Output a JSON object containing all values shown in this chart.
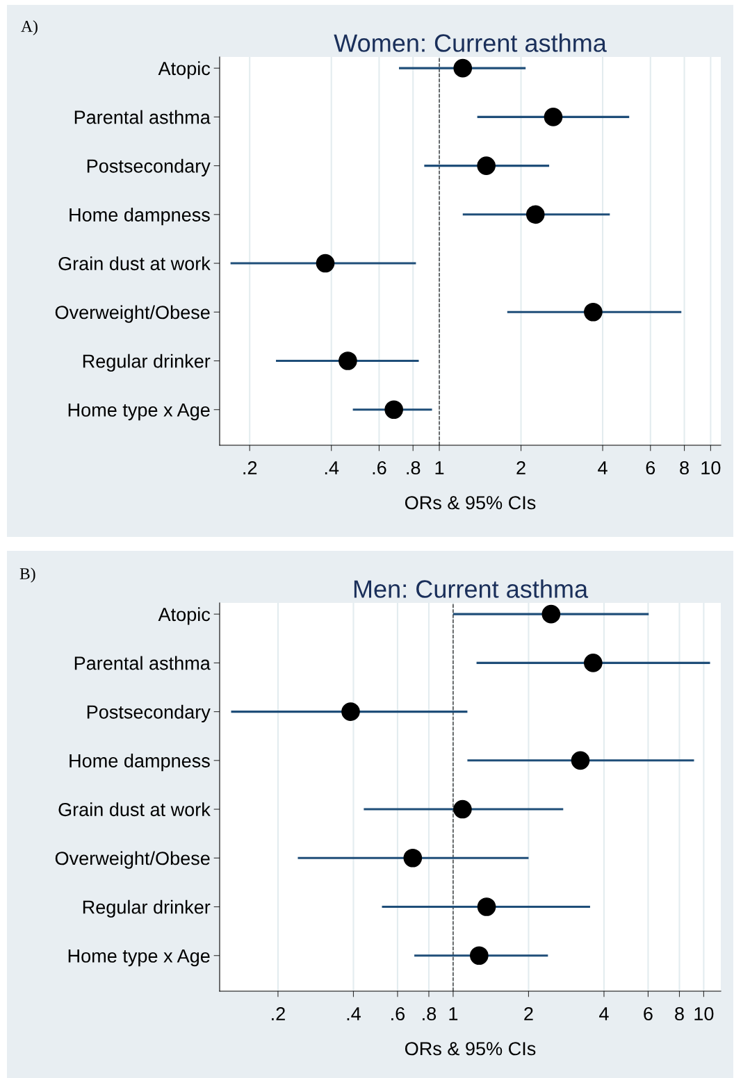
{
  "chart_data": [
    {
      "type": "scatter",
      "orientation": "horizontal",
      "title": "Women: Current asthma",
      "xlabel": "ORs & 95% CIs",
      "annotations": [
        "A)"
      ],
      "categories": [
        "Atopic",
        "Parental asthma",
        "Postsecondary",
        "Home dampness",
        "Grain dust at work",
        "Overweight/Obese",
        "Regular drinker",
        "Home type x Age"
      ],
      "values": [
        1.22,
        2.63,
        1.49,
        2.26,
        0.38,
        3.69,
        0.46,
        0.68
      ],
      "errors": [
        [
          0.71,
          2.08
        ],
        [
          1.38,
          5.01
        ],
        [
          0.88,
          2.54
        ],
        [
          1.22,
          4.25
        ],
        [
          0.17,
          0.82
        ],
        [
          1.78,
          7.8
        ],
        [
          0.25,
          0.84
        ],
        [
          0.48,
          0.94
        ]
      ],
      "color": "#000000",
      "marker": "circle",
      "log": "x",
      "grid": "x",
      "xlim": [
        0.155,
        10.9
      ],
      "xticks": [
        {
          "value": 0.2,
          "label": ".2"
        },
        {
          "value": 0.4,
          "label": ".4"
        },
        {
          "value": 0.6,
          "label": ".6"
        },
        {
          "value": 0.8,
          "label": ".8"
        },
        1,
        2,
        4,
        6,
        8,
        10
      ],
      "ref_lines": [
        {
          "axis": "x",
          "value": 1,
          "label": null,
          "line_style": "dashed",
          "color": "#333333"
        }
      ]
    },
    {
      "type": "scatter",
      "orientation": "horizontal",
      "title": "Men: Current asthma",
      "xlabel": "ORs & 95% CIs",
      "annotations": [
        "B)"
      ],
      "categories": [
        "Atopic",
        "Parental asthma",
        "Postsecondary",
        "Home dampness",
        "Grain dust at work",
        "Overweight/Obese",
        "Regular drinker",
        "Home type x Age"
      ],
      "values": [
        2.46,
        3.62,
        0.39,
        3.22,
        1.09,
        0.69,
        1.36,
        1.27
      ],
      "errors": [
        [
          1.0,
          6.03
        ],
        [
          1.24,
          10.6
        ],
        [
          0.13,
          1.14
        ],
        [
          1.14,
          9.15
        ],
        [
          0.44,
          2.75
        ],
        [
          0.24,
          2.0
        ],
        [
          0.52,
          3.52
        ],
        [
          0.7,
          2.39
        ]
      ],
      "color": "#000000",
      "marker": "circle",
      "log": "x",
      "grid": "x",
      "xlim": [
        0.117,
        11.7
      ],
      "xticks": [
        {
          "value": 0.2,
          "label": ".2"
        },
        {
          "value": 0.4,
          "label": ".4"
        },
        {
          "value": 0.6,
          "label": ".6"
        },
        {
          "value": 0.8,
          "label": ".8"
        },
        1,
        2,
        4,
        6,
        8,
        10
      ],
      "ref_lines": [
        {
          "axis": "x",
          "value": 1,
          "label": null,
          "line_style": "dashed",
          "color": "#333333"
        }
      ]
    }
  ]
}
